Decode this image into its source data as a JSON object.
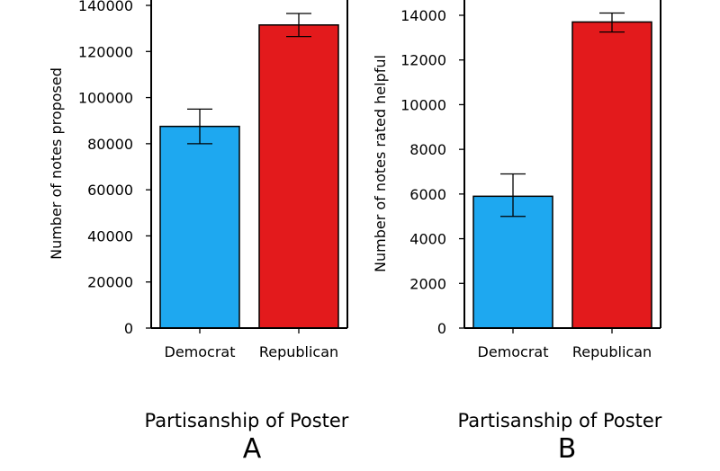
{
  "chart_data": [
    {
      "type": "bar",
      "panel_label": "A",
      "categories": [
        "Democrat",
        "Republican"
      ],
      "values": [
        87500,
        131500
      ],
      "error_low": [
        80000,
        126500
      ],
      "error_high": [
        95000,
        136500
      ],
      "colors": [
        "#1ea8f0",
        "#e31a1c"
      ],
      "ylabel": "Number of notes proposed",
      "xlabel": "Partisanship of Poster",
      "ylim": [
        0,
        140000
      ],
      "yticks": [
        0,
        20000,
        40000,
        60000,
        80000,
        100000,
        120000,
        140000
      ],
      "ytick_labels": [
        "0",
        "20000",
        "40000",
        "60000",
        "80000",
        "100000",
        "120000",
        "140000"
      ],
      "grid": false
    },
    {
      "type": "bar",
      "panel_label": "B",
      "categories": [
        "Democrat",
        "Republican"
      ],
      "values": [
        5900,
        13700
      ],
      "error_low": [
        5000,
        13250
      ],
      "error_high": [
        6900,
        14100
      ],
      "colors": [
        "#1ea8f0",
        "#e31a1c"
      ],
      "ylabel": "Number of notes rated helpful",
      "xlabel": "Partisanship of Poster",
      "ylim": [
        0,
        14000
      ],
      "yticks": [
        0,
        2000,
        4000,
        6000,
        8000,
        10000,
        12000,
        14000
      ],
      "ytick_labels": [
        "0",
        "2000",
        "4000",
        "6000",
        "8000",
        "10000",
        "12000",
        "14000"
      ],
      "grid": false
    }
  ]
}
